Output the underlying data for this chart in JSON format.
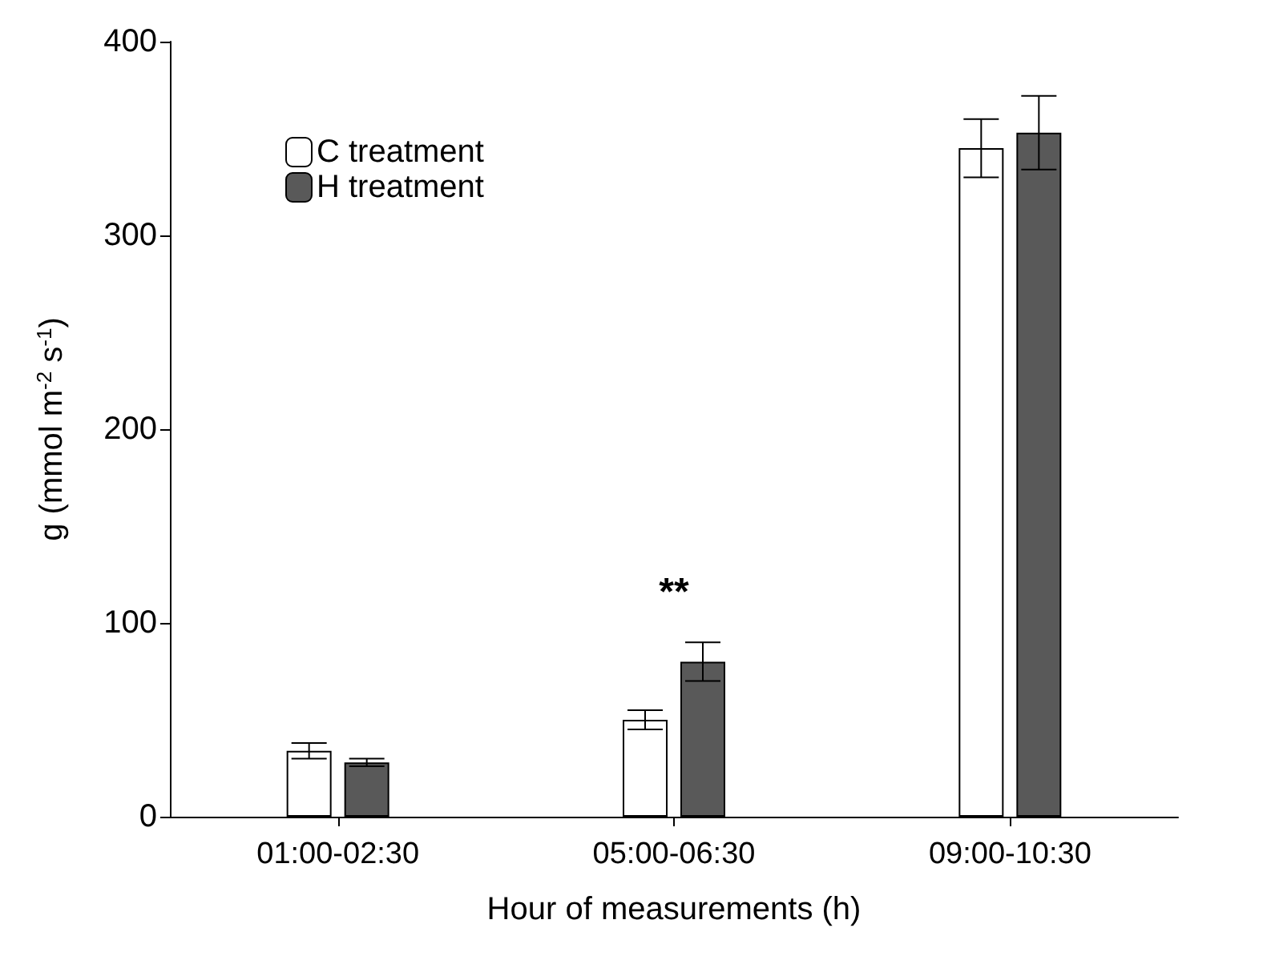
{
  "chart_data": {
    "type": "bar",
    "xlabel": "Hour of measurements (h)",
    "ylabel": "g (mmol m$^{-2}$ s$^{-1}$)",
    "categories": [
      "01:00-02:30",
      "05:00-06:30",
      "09:00-10:30"
    ],
    "series": [
      {
        "name": "C treatment",
        "color": "#ffffff",
        "values": [
          34,
          50,
          345
        ],
        "errors": [
          4,
          5,
          15
        ]
      },
      {
        "name": "H treatment",
        "color": "#595959",
        "values": [
          28,
          80,
          353
        ],
        "errors": [
          2,
          10,
          19
        ]
      }
    ],
    "ylim": [
      0,
      400
    ],
    "yticks": [
      0,
      100,
      200,
      300,
      400
    ],
    "grid": false,
    "legend": "top left",
    "annotations": [
      "**"
    ]
  }
}
